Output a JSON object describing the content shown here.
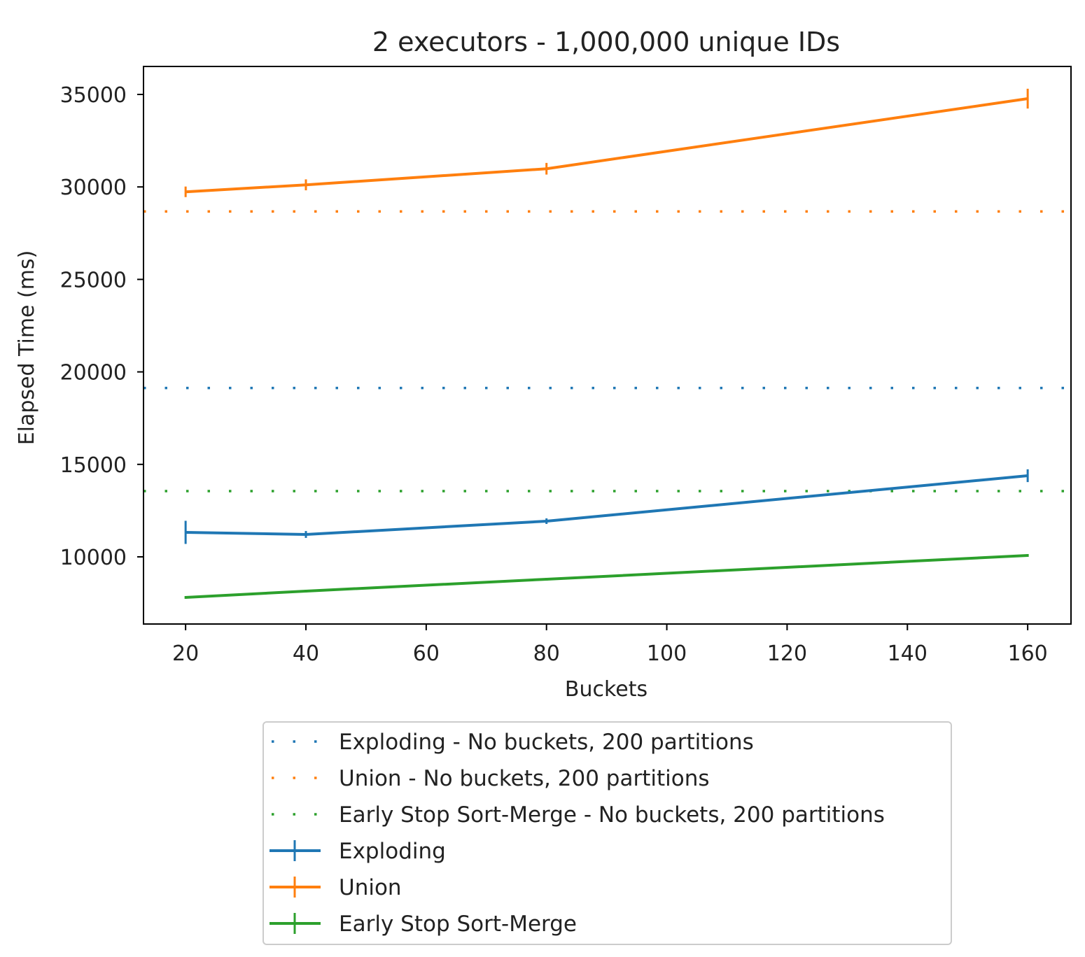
{
  "chart_data": {
    "type": "line",
    "title": "2 executors - 1,000,000 unique IDs",
    "xlabel": "Buckets",
    "ylabel": "Elapsed Time (ms)",
    "xlim": [
      13,
      167.2
    ],
    "ylim": [
      6369,
      36513
    ],
    "xticks": [
      20,
      40,
      60,
      80,
      100,
      120,
      140,
      160
    ],
    "yticks": [
      10000,
      15000,
      20000,
      25000,
      30000,
      35000
    ],
    "grid": false,
    "legend_placement": "below",
    "x": [
      20,
      40,
      80,
      160
    ],
    "baselines": [
      {
        "name": "Exploding - No buckets, 200 partitions",
        "value": 19130,
        "color": "#1f77b4",
        "style": "dotted"
      },
      {
        "name": "Union - No buckets, 200 partitions",
        "value": 28676,
        "color": "#ff7f0e",
        "style": "dotted"
      },
      {
        "name": "Early Stop Sort-Merge - No buckets, 200 partitions",
        "value": 13555,
        "color": "#2ca02c",
        "style": "dotted"
      }
    ],
    "series": [
      {
        "name": "Exploding",
        "color": "#1f77b4",
        "values": [
          11324,
          11210,
          11929,
          14388
        ],
        "errors": [
          550,
          110,
          75,
          270
        ]
      },
      {
        "name": "Union",
        "color": "#ff7f0e",
        "values": [
          29735,
          30113,
          30983,
          34773
        ],
        "errors": [
          210,
          220,
          240,
          460
        ]
      },
      {
        "name": "Early Stop Sort-Merge",
        "color": "#2ca02c",
        "values": [
          7806,
          8147,
          8790,
          10076
        ],
        "errors": [
          0,
          0,
          0,
          0
        ]
      }
    ]
  }
}
